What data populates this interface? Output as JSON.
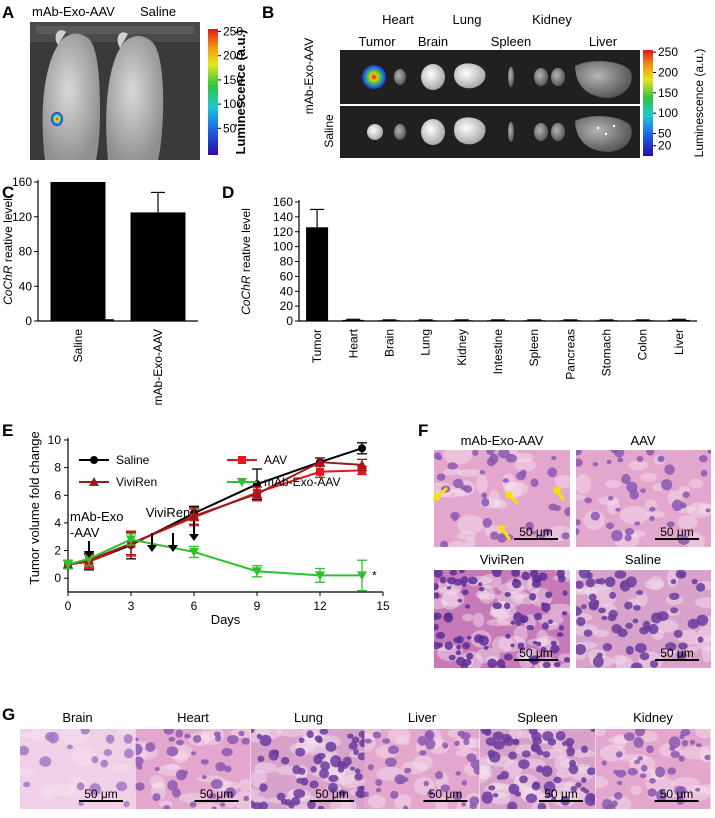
{
  "panels": {
    "A": "A",
    "B": "B",
    "C": "C",
    "D": "D",
    "E": "E",
    "F": "F",
    "G": "G"
  },
  "panel_a": {
    "labels": [
      "mAb-Exo-AAV",
      "Saline"
    ],
    "colorbar": {
      "title": "Luminescence (a.u.)",
      "ticks": [
        "250",
        "200",
        "150",
        "100",
        "50"
      ]
    }
  },
  "panel_b": {
    "organs_top": [
      "Heart",
      "Lung",
      "Kidney"
    ],
    "organs_bottom": [
      "Tumor",
      "Brain",
      "Spleen",
      "Liver"
    ],
    "row_labels": [
      "mAb-Exo-AAV",
      "Saline"
    ],
    "colorbar": {
      "title": "Luminescence (a.u.)",
      "ticks": [
        "250",
        "200",
        "150",
        "100",
        "50",
        "20"
      ]
    }
  },
  "panel_f": {
    "labels": [
      "mAb-Exo-AAV",
      "AAV",
      "ViviRen",
      "Saline"
    ],
    "scale": "50 μm"
  },
  "panel_g": {
    "labels": [
      "Brain",
      "Heart",
      "Lung",
      "Liver",
      "Spleen",
      "Kidney"
    ],
    "scale": "50 μm"
  },
  "colors": {
    "saline": "#000000",
    "aav": "#e8141c",
    "vivi": "#9b1b1e",
    "mab": "#2ec02e",
    "he_pink": "#e9a9cf",
    "he_purple": "#8e58b3",
    "arrow": "#f3e300"
  },
  "chart_data": [
    {
      "id": "C",
      "type": "bar",
      "categories": [
        "Saline",
        "mAb-Exo-AAV"
      ],
      "values": [
        160,
        125
      ],
      "errors": [
        0,
        23
      ],
      "ylabel_italic": "CoChR",
      "ylabel_rest": " reative level",
      "ylim": [
        0,
        160
      ],
      "yticks": [
        0,
        40,
        80,
        120,
        160
      ]
    },
    {
      "id": "D",
      "type": "bar",
      "categories": [
        "Tumor",
        "Heart",
        "Brain",
        "Lung",
        "Kidney",
        "Intestine",
        "Spleen",
        "Pancreas",
        "Stomach",
        "Colon",
        "Liver"
      ],
      "values": [
        126,
        1.5,
        1,
        1,
        1,
        1,
        1,
        1,
        1,
        1,
        1.5
      ],
      "errors": [
        24,
        0.8,
        0.5,
        0.5,
        0.5,
        0.5,
        0.5,
        0.5,
        0.5,
        0.5,
        0.8
      ],
      "ylabel_italic": "CoChR",
      "ylabel_rest": " reative level",
      "ylim": [
        0,
        160
      ],
      "yticks": [
        0,
        20,
        40,
        60,
        80,
        100,
        120,
        140,
        160
      ]
    },
    {
      "id": "E",
      "type": "line",
      "x": [
        0,
        1,
        3,
        6,
        9,
        12,
        14
      ],
      "series": [
        {
          "name": "Saline",
          "values": [
            1.0,
            1.2,
            2.4,
            4.7,
            6.8,
            8.4,
            9.4
          ],
          "errors": [
            0.3,
            0.6,
            1.0,
            0.5,
            1.1,
            0.3,
            0.4
          ]
        },
        {
          "name": "AAV",
          "values": [
            1.0,
            1.2,
            2.5,
            4.4,
            6.2,
            7.7,
            7.8
          ],
          "errors": [
            0.3,
            0.5,
            0.9,
            0.6,
            0.4,
            0.4,
            0.3
          ]
        },
        {
          "name": "ViviRen",
          "values": [
            1.0,
            1.3,
            2.5,
            4.5,
            6.1,
            8.4,
            8.2
          ],
          "errors": [
            0.3,
            0.5,
            0.8,
            0.6,
            0.5,
            0.3,
            0.4
          ]
        },
        {
          "name": "mAb-Exo-AAV",
          "values": [
            1.0,
            1.4,
            2.8,
            1.9,
            0.5,
            0.2,
            0.2
          ],
          "errors": [
            0.3,
            0.5,
            0.4,
            0.4,
            0.4,
            0.5,
            1.1
          ]
        }
      ],
      "xlabel": "Days",
      "ylabel": "Tumor volume fold change",
      "xlim": [
        0,
        15
      ],
      "ylim": [
        -1,
        10
      ],
      "xticks": [
        0,
        3,
        6,
        9,
        12,
        15
      ],
      "yticks": [
        0,
        2,
        4,
        6,
        8,
        10
      ],
      "annotations": {
        "mab_label_1": "mAb-Exo",
        "mab_label_2": "-AAV",
        "mab_days": [
          1
        ],
        "vivi_label": "ViviRen",
        "vivi_days": [
          4,
          5,
          6
        ],
        "star": "*"
      }
    }
  ]
}
